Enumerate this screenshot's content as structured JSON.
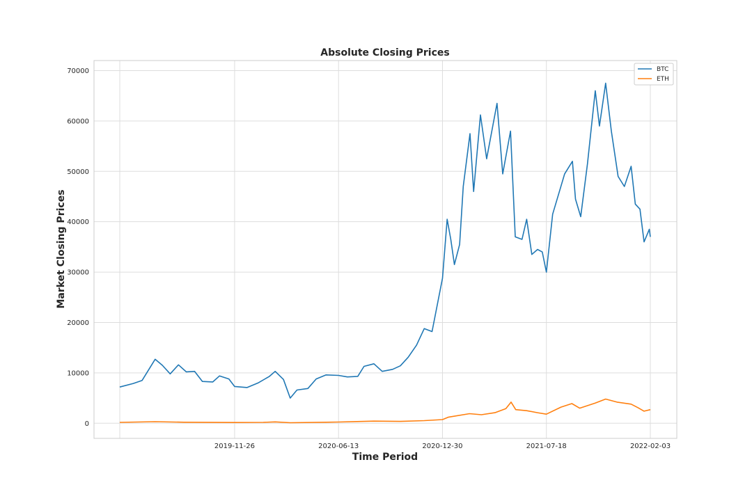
{
  "chart_data": {
    "type": "line",
    "title": "Absolute Closing Prices",
    "xlabel": "Time Period",
    "ylabel": "Market Closing Prices",
    "x_range": [
      "2019-04-19",
      "2022-02-03"
    ],
    "ylim": [
      -3000,
      72000
    ],
    "x_ticks": [
      "2019-11-26",
      "2020-06-13",
      "2020-12-30",
      "2021-07-18",
      "2022-02-03"
    ],
    "y_ticks": [
      0,
      10000,
      20000,
      30000,
      40000,
      50000,
      60000,
      70000
    ],
    "grid": true,
    "legend_position": "top-right",
    "series": [
      {
        "name": "BTC",
        "color": "#1f77b4",
        "points": [
          [
            "2019-04-19",
            7200
          ],
          [
            "2019-05-15",
            7900
          ],
          [
            "2019-06-01",
            8500
          ],
          [
            "2019-06-26",
            12700
          ],
          [
            "2019-07-10",
            11500
          ],
          [
            "2019-07-25",
            9800
          ],
          [
            "2019-08-10",
            11600
          ],
          [
            "2019-08-25",
            10200
          ],
          [
            "2019-09-10",
            10300
          ],
          [
            "2019-09-25",
            8300
          ],
          [
            "2019-10-15",
            8200
          ],
          [
            "2019-10-28",
            9400
          ],
          [
            "2019-11-15",
            8800
          ],
          [
            "2019-11-26",
            7300
          ],
          [
            "2019-12-20",
            7100
          ],
          [
            "2020-01-10",
            8000
          ],
          [
            "2020-02-01",
            9300
          ],
          [
            "2020-02-12",
            10300
          ],
          [
            "2020-02-28",
            8700
          ],
          [
            "2020-03-12",
            5000
          ],
          [
            "2020-03-25",
            6600
          ],
          [
            "2020-04-15",
            6900
          ],
          [
            "2020-05-01",
            8800
          ],
          [
            "2020-05-20",
            9600
          ],
          [
            "2020-06-13",
            9500
          ],
          [
            "2020-06-30",
            9200
          ],
          [
            "2020-07-20",
            9300
          ],
          [
            "2020-08-01",
            11300
          ],
          [
            "2020-08-20",
            11800
          ],
          [
            "2020-09-05",
            10300
          ],
          [
            "2020-09-25",
            10700
          ],
          [
            "2020-10-10",
            11400
          ],
          [
            "2020-10-25",
            13100
          ],
          [
            "2020-11-10",
            15500
          ],
          [
            "2020-11-25",
            18800
          ],
          [
            "2020-12-10",
            18200
          ],
          [
            "2020-12-20",
            23500
          ],
          [
            "2020-12-30",
            28800
          ],
          [
            "2021-01-08",
            40500
          ],
          [
            "2021-01-15",
            36500
          ],
          [
            "2021-01-22",
            31500
          ],
          [
            "2021-02-01",
            35500
          ],
          [
            "2021-02-08",
            47000
          ],
          [
            "2021-02-21",
            57500
          ],
          [
            "2021-02-28",
            46000
          ],
          [
            "2021-03-13",
            61200
          ],
          [
            "2021-03-25",
            52500
          ],
          [
            "2021-04-14",
            63500
          ],
          [
            "2021-04-25",
            49500
          ],
          [
            "2021-05-10",
            58000
          ],
          [
            "2021-05-19",
            37000
          ],
          [
            "2021-06-01",
            36500
          ],
          [
            "2021-06-10",
            40500
          ],
          [
            "2021-06-20",
            33500
          ],
          [
            "2021-07-01",
            34500
          ],
          [
            "2021-07-10",
            34000
          ],
          [
            "2021-07-18",
            30000
          ],
          [
            "2021-07-30",
            41500
          ],
          [
            "2021-08-12",
            46000
          ],
          [
            "2021-08-22",
            49500
          ],
          [
            "2021-09-06",
            52000
          ],
          [
            "2021-09-12",
            44500
          ],
          [
            "2021-09-22",
            41000
          ],
          [
            "2021-10-05",
            51500
          ],
          [
            "2021-10-20",
            66000
          ],
          [
            "2021-10-28",
            59000
          ],
          [
            "2021-11-09",
            67500
          ],
          [
            "2021-11-20",
            58000
          ],
          [
            "2021-12-03",
            49000
          ],
          [
            "2021-12-15",
            47000
          ],
          [
            "2021-12-28",
            51000
          ],
          [
            "2022-01-05",
            43500
          ],
          [
            "2022-01-14",
            42500
          ],
          [
            "2022-01-22",
            36000
          ],
          [
            "2022-01-28",
            37500
          ],
          [
            "2022-02-01",
            38500
          ],
          [
            "2022-02-03",
            37000
          ]
        ]
      },
      {
        "name": "ETH",
        "color": "#ff7f0e",
        "points": [
          [
            "2019-04-19",
            170
          ],
          [
            "2019-06-26",
            320
          ],
          [
            "2019-08-20",
            200
          ],
          [
            "2019-11-26",
            150
          ],
          [
            "2020-01-20",
            170
          ],
          [
            "2020-02-12",
            270
          ],
          [
            "2020-03-12",
            110
          ],
          [
            "2020-05-20",
            210
          ],
          [
            "2020-06-13",
            240
          ],
          [
            "2020-08-20",
            430
          ],
          [
            "2020-10-10",
            370
          ],
          [
            "2020-11-25",
            520
          ],
          [
            "2020-12-30",
            730
          ],
          [
            "2021-01-10",
            1200
          ],
          [
            "2021-02-20",
            1900
          ],
          [
            "2021-03-15",
            1700
          ],
          [
            "2021-04-10",
            2100
          ],
          [
            "2021-05-01",
            2900
          ],
          [
            "2021-05-11",
            4200
          ],
          [
            "2021-05-20",
            2700
          ],
          [
            "2021-06-10",
            2500
          ],
          [
            "2021-07-01",
            2100
          ],
          [
            "2021-07-18",
            1800
          ],
          [
            "2021-08-15",
            3200
          ],
          [
            "2021-09-05",
            3900
          ],
          [
            "2021-09-20",
            3000
          ],
          [
            "2021-10-20",
            4000
          ],
          [
            "2021-11-09",
            4800
          ],
          [
            "2021-12-01",
            4200
          ],
          [
            "2021-12-28",
            3800
          ],
          [
            "2022-01-10",
            3100
          ],
          [
            "2022-01-22",
            2400
          ],
          [
            "2022-02-03",
            2700
          ]
        ]
      }
    ]
  }
}
